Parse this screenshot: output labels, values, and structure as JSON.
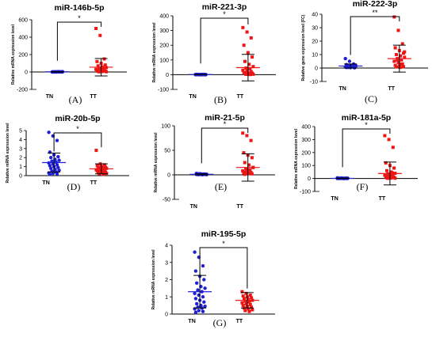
{
  "colors": {
    "TN": "#1f1fd6",
    "TT": "#ef1515",
    "axis": "#000000"
  },
  "chart_data": [
    {
      "type": "scatter",
      "panel_label": "(A)",
      "title": "miR-146b-5p",
      "ylabel": "Relative mRNA expression level",
      "categories": [
        "TN",
        "TT"
      ],
      "ylim": [
        -200,
        600
      ],
      "yticks": [
        -200,
        0,
        200,
        400,
        600
      ],
      "significance": "*",
      "series": [
        {
          "name": "TN",
          "mean": 2,
          "sd": 3,
          "values": [
            0,
            1,
            2,
            1,
            3,
            0,
            2,
            4,
            1,
            2,
            3,
            1,
            0,
            2,
            1,
            3,
            2,
            1,
            2,
            4,
            1,
            2
          ]
        },
        {
          "name": "TT",
          "mean": 55,
          "sd": 100,
          "values": [
            500,
            420,
            150,
            120,
            100,
            80,
            70,
            60,
            50,
            45,
            40,
            30,
            25,
            20,
            18,
            15,
            10,
            8,
            5,
            3,
            2,
            30
          ]
        }
      ]
    },
    {
      "type": "scatter",
      "panel_label": "(B)",
      "title": "miR-221-3p",
      "ylabel": "Relative mRNA expression level",
      "categories": [
        "TN",
        "TT"
      ],
      "ylim": [
        -100,
        400
      ],
      "yticks": [
        -100,
        0,
        100,
        200,
        300,
        400
      ],
      "significance": "*",
      "series": [
        {
          "name": "TN",
          "mean": 1,
          "sd": 1,
          "values": [
            0,
            1,
            2,
            1,
            0,
            1,
            2,
            1,
            0,
            1,
            2,
            1,
            0,
            1,
            2,
            1,
            0,
            1,
            2,
            1,
            1,
            0
          ]
        },
        {
          "name": "TT",
          "mean": 48,
          "sd": 90,
          "values": [
            320,
            290,
            250,
            200,
            150,
            120,
            90,
            70,
            55,
            45,
            40,
            30,
            25,
            20,
            15,
            12,
            10,
            8,
            5,
            3,
            2,
            1
          ]
        }
      ]
    },
    {
      "type": "scatter",
      "panel_label": "(C)",
      "title": "miR-222-3p",
      "ylabel": "Relative gene expression level (FC)",
      "categories": [
        "TN",
        "TT"
      ],
      "ylim": [
        -10,
        40
      ],
      "yticks": [
        -10,
        0,
        10,
        20,
        30,
        40
      ],
      "significance": "**",
      "series": [
        {
          "name": "TN",
          "mean": 1.5,
          "sd": 1.5,
          "values": [
            7,
            5,
            3,
            2.5,
            2,
            2,
            1.8,
            1.5,
            1.2,
            1,
            1,
            0.8,
            0.6,
            0.5,
            0.4,
            0.3,
            0.2,
            1,
            1.5,
            2,
            0.5,
            1
          ]
        },
        {
          "name": "TT",
          "mean": 7,
          "sd": 10,
          "values": [
            38,
            28,
            18,
            15,
            13,
            11,
            10,
            9,
            8,
            7,
            6,
            5,
            4,
            3,
            2,
            1.5,
            1,
            0.8,
            0.5,
            12,
            6,
            3
          ]
        }
      ]
    },
    {
      "type": "scatter",
      "panel_label": "(D)",
      "title": "miR-20b-5p",
      "ylabel": "Relative mRNA expression level",
      "categories": [
        "TN",
        "TT"
      ],
      "ylim": [
        0,
        5
      ],
      "yticks": [
        0,
        1,
        2,
        3,
        4,
        5
      ],
      "significance": "*",
      "series": [
        {
          "name": "TN",
          "mean": 1.45,
          "sd": 1.05,
          "values": [
            4.8,
            4.4,
            3.9,
            2.6,
            2.3,
            2.1,
            2,
            1.8,
            1.7,
            1.6,
            1.5,
            1.4,
            1.3,
            1.2,
            1.1,
            1,
            0.9,
            0.8,
            0.7,
            0.6,
            0.5,
            0.4,
            0.3,
            0.25,
            0.2,
            0.15
          ]
        },
        {
          "name": "TT",
          "mean": 0.75,
          "sd": 0.55,
          "values": [
            2.8,
            1.3,
            1.2,
            1.1,
            1,
            0.95,
            0.9,
            0.85,
            0.8,
            0.75,
            0.7,
            0.65,
            0.6,
            0.55,
            0.5,
            0.45,
            0.4,
            0.35,
            0.3,
            0.25,
            0.2,
            0.15
          ]
        }
      ]
    },
    {
      "type": "scatter",
      "panel_label": "(E)",
      "title": "miR-21-5p",
      "ylabel": "Relative mRNA expression level",
      "categories": [
        "TN",
        "TT"
      ],
      "ylim": [
        -50,
        100
      ],
      "yticks": [
        -50,
        0,
        50,
        100
      ],
      "significance": "*",
      "series": [
        {
          "name": "TN",
          "mean": 1,
          "sd": 1,
          "values": [
            3,
            2,
            1.5,
            1,
            1,
            0.8,
            0.5,
            0.3,
            1,
            2,
            1.5,
            0.8,
            1,
            1.2,
            0.9,
            0.7,
            1,
            2,
            1,
            0.5,
            1,
            1
          ]
        },
        {
          "name": "TT",
          "mean": 15,
          "sd": 28,
          "values": [
            85,
            80,
            70,
            45,
            40,
            35,
            25,
            20,
            15,
            12,
            10,
            8,
            6,
            5,
            4,
            3,
            2,
            1,
            10,
            15,
            5,
            3
          ]
        }
      ]
    },
    {
      "type": "scatter",
      "panel_label": "(F)",
      "title": "miR-181a-5p",
      "ylabel": "Relative mRNA expression level",
      "categories": [
        "TN",
        "TT"
      ],
      "ylim": [
        -100,
        400
      ],
      "yticks": [
        -100,
        0,
        100,
        200,
        300,
        400
      ],
      "significance": "*",
      "series": [
        {
          "name": "TN",
          "mean": 1,
          "sd": 2,
          "values": [
            5,
            3,
            2,
            1,
            1,
            1,
            0.5,
            0,
            1,
            2,
            1,
            0,
            1,
            1,
            2,
            1,
            0,
            1,
            1,
            2,
            1,
            0
          ]
        },
        {
          "name": "TT",
          "mean": 38,
          "sd": 88,
          "values": [
            330,
            300,
            240,
            120,
            100,
            80,
            60,
            50,
            40,
            35,
            30,
            25,
            20,
            15,
            12,
            10,
            8,
            5,
            3,
            2,
            1,
            45
          ]
        }
      ]
    },
    {
      "type": "scatter",
      "panel_label": "(G)",
      "title": "miR-195-5p",
      "ylabel": "Relative mRNA expression level",
      "categories": [
        "TN",
        "TT"
      ],
      "ylim": [
        0,
        4
      ],
      "yticks": [
        0,
        1,
        2,
        3,
        4
      ],
      "significance": "*",
      "series": [
        {
          "name": "TN",
          "mean": 1.3,
          "sd": 0.95,
          "values": [
            3.6,
            3.3,
            2.8,
            2.5,
            2.2,
            2,
            1.8,
            1.6,
            1.5,
            1.4,
            1.3,
            1.2,
            1.1,
            1,
            0.9,
            0.8,
            0.7,
            0.6,
            0.5,
            0.45,
            0.4,
            0.35,
            0.3,
            0.2,
            0.15,
            0.1
          ]
        },
        {
          "name": "TT",
          "mean": 0.8,
          "sd": 0.45,
          "values": [
            1.3,
            1.2,
            1.1,
            1.05,
            1,
            0.95,
            0.9,
            0.85,
            0.8,
            0.75,
            0.7,
            0.65,
            0.6,
            0.55,
            0.5,
            0.45,
            0.4,
            0.35,
            0.3,
            0.25,
            0.2,
            0.15
          ]
        }
      ]
    }
  ]
}
